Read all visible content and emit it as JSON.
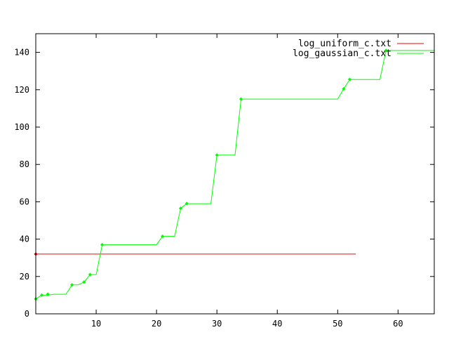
{
  "chart_data": {
    "type": "line",
    "title": "",
    "xlabel": "",
    "ylabel": "",
    "xlim": [
      0,
      66
    ],
    "ylim": [
      0,
      150
    ],
    "xticks": [
      10,
      20,
      30,
      40,
      50,
      60
    ],
    "yticks": [
      0,
      20,
      40,
      60,
      80,
      100,
      120,
      140
    ],
    "grid": false,
    "legend_position": "top-right",
    "series": [
      {
        "name": "log_uniform_c.txt",
        "color": "#ff0000",
        "style": "line",
        "x": [
          0,
          53
        ],
        "y": [
          32,
          32
        ],
        "markers": [
          [
            0,
            32
          ]
        ]
      },
      {
        "name": "log_gaussian_c.txt",
        "color": "#00ff00",
        "style": "linespoints",
        "x": [
          0,
          1,
          2,
          3,
          5,
          6,
          7,
          8,
          9,
          10,
          11,
          20,
          21,
          23,
          24,
          25,
          29,
          30,
          33,
          34,
          50,
          51,
          52,
          57,
          58,
          66
        ],
        "y": [
          8,
          10,
          10,
          10.5,
          10.5,
          15.5,
          15.5,
          17,
          21,
          21,
          37,
          37,
          41.5,
          41.5,
          56.5,
          59,
          59,
          85,
          85,
          115,
          115,
          120.5,
          125.5,
          125.5,
          141,
          141
        ],
        "markers": [
          [
            0,
            8
          ],
          [
            1,
            10
          ],
          [
            2,
            10.5
          ],
          [
            6,
            15.5
          ],
          [
            8,
            17
          ],
          [
            9,
            21
          ],
          [
            11,
            37
          ],
          [
            21,
            41.5
          ],
          [
            24,
            56.5
          ],
          [
            25,
            59
          ],
          [
            30,
            85
          ],
          [
            34,
            115
          ],
          [
            51,
            120.5
          ],
          [
            52,
            125.5
          ],
          [
            58,
            141
          ]
        ]
      }
    ]
  }
}
